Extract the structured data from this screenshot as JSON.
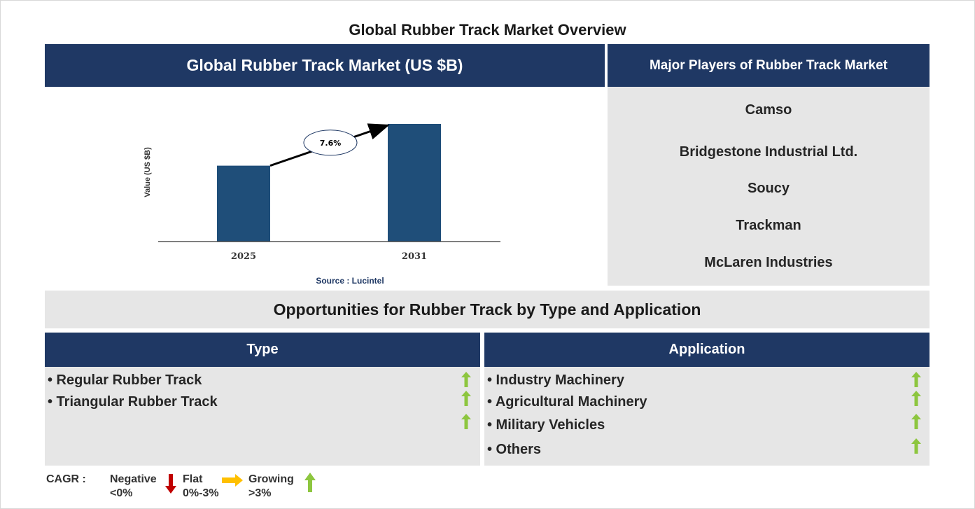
{
  "page_title": "Global Rubber Track Market Overview",
  "market_header": "Global Rubber Track Market (US $B)",
  "players_header": "Major Players of Rubber Track Market",
  "players": [
    "Camso",
    "Bridgestone Industrial Ltd.",
    "Soucy",
    "Trackman",
    "McLaren Industries"
  ],
  "opportunities_title": "Opportunities for Rubber Track by Type and Application",
  "type_header": "Type",
  "application_header": "Application",
  "type_items": [
    "• Regular Rubber Track",
    "• Triangular Rubber Track"
  ],
  "application_items": [
    "• Industry Machinery",
    "• Agricultural Machinery",
    "• Military Vehicles",
    "• Others"
  ],
  "legend": {
    "cagr_label": "CAGR :",
    "negative_label": "Negative",
    "negative_range": "<0%",
    "flat_label": "Flat",
    "flat_range": "0%-3%",
    "growing_label": "Growing",
    "growing_range": ">3%"
  },
  "colors": {
    "navy": "#1f3864",
    "bar": "#1f4e79",
    "panel_grey": "#e6e6e6",
    "growing_arrow": "#8dc63f",
    "flat_arrow": "#ffc000",
    "negative_arrow": "#c00000"
  },
  "chart_data": {
    "type": "bar",
    "categories": [
      "2025",
      "2031"
    ],
    "values": [
      1.0,
      1.55
    ],
    "ylabel": "Value (US $B)",
    "xlabel": "",
    "cagr_annotation": "7.6%",
    "source": "Source : Lucintel",
    "grid": false
  }
}
